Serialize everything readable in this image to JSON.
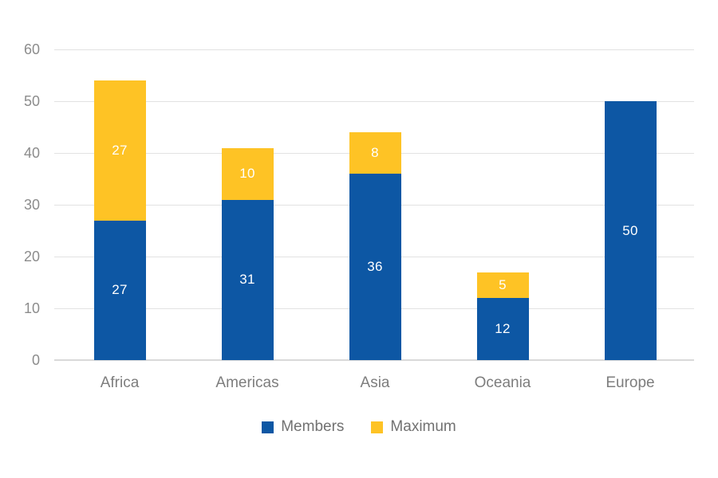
{
  "chart_data": {
    "type": "bar",
    "stacked": true,
    "title": "",
    "xlabel": "",
    "ylabel": "",
    "categories": [
      "Africa",
      "Americas",
      "Asia",
      "Oceania",
      "Europe"
    ],
    "series": [
      {
        "name": "Members",
        "color": "#0d57a4",
        "values": [
          27,
          31,
          36,
          12,
          50
        ]
      },
      {
        "name": "Maximum",
        "color": "#fec325",
        "values": [
          27,
          10,
          8,
          5,
          0
        ]
      }
    ],
    "totals": [
      54,
      41,
      44,
      17,
      50
    ],
    "ylim": [
      0,
      60
    ],
    "yticks": [
      0,
      10,
      20,
      30,
      40,
      50,
      60
    ],
    "grid": true,
    "legend_position": "bottom",
    "data_label_color": "#ffffff",
    "axis_text_color": "#8c8c8c",
    "gridline_color": "#e2e2e2",
    "background": "#ffffff"
  }
}
